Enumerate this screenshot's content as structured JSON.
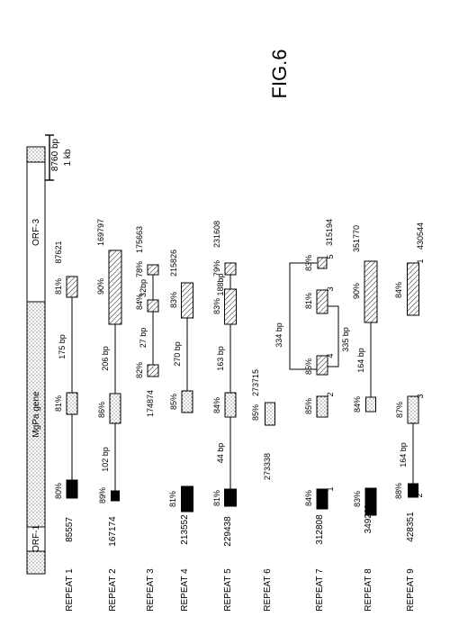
{
  "figure_label": "FIG.6",
  "top_bar": {
    "orf1_label": "ORF-1",
    "mgpa_label": "MgPa gene",
    "orf3_label": "ORF-3",
    "length_label": "8760 bp"
  },
  "scale_bar_label": "1 kb",
  "repeats": [
    {
      "label": "REPEAT 1",
      "position": "85557",
      "pct_a": "80%",
      "pct_b": "81%",
      "gap_b": "175 bp",
      "pct_c": "81%",
      "end_pos": "87621"
    },
    {
      "label": "REPEAT 2",
      "position": "167174",
      "pct_a": "89%",
      "gap_a": "102 bp",
      "pct_b": "86%",
      "gap_b": "206 bp",
      "pct_c": "90%",
      "end_pos": "169797"
    },
    {
      "label": "REPEAT 3",
      "start_pos": "174874",
      "pct_c1": "82%",
      "gap_c1": "27 bp",
      "pct_c2": "84%",
      "gap_c2": "32bp",
      "pct_c3": "78%",
      "end_pos": "175663"
    },
    {
      "label": "REPEAT 4",
      "position": "213552",
      "pct_a": "81%",
      "pct_b": "85%",
      "gap_b": "270 bp",
      "pct_c": "83%",
      "end_pos": "215826"
    },
    {
      "label": "REPEAT 5",
      "position": "229438",
      "pct_a": "81%",
      "gap_a": "44 bp",
      "pct_b": "84%",
      "gap_b": "163 bp",
      "pct_c": "83%",
      "gap_c": "188bp",
      "pct_d": "79%",
      "end_pos": "231608"
    },
    {
      "label": "REPEAT 6",
      "position": "273338",
      "pct_b": "85%",
      "end_pos": "273715"
    },
    {
      "label": "REPEAT 7",
      "position": "312808",
      "pct_a": "84%",
      "num_a": "1",
      "pct_b": "85%",
      "num_b": "2",
      "pct_b2": "85%",
      "num_b2": "4",
      "gap_334": "334 bp",
      "gap_335": "335 bp",
      "pct_c": "81%",
      "num_c": "3",
      "pct_d": "83%",
      "num_d": "5",
      "end_pos": "315194"
    },
    {
      "label": "REPEAT 8",
      "position": "349211",
      "pct_a": "83%",
      "pct_b": "84%",
      "gap_b": "164 bp",
      "pct_c": "90%",
      "end_pos": "351770"
    },
    {
      "label": "REPEAT 9",
      "position": "428351",
      "num_a": "2",
      "pct_a": "88%",
      "gap_a": "164 bp",
      "pct_b": "87%",
      "num_b": "3",
      "pct_c": "84%",
      "num_c": "1",
      "end_pos": "430544"
    }
  ]
}
